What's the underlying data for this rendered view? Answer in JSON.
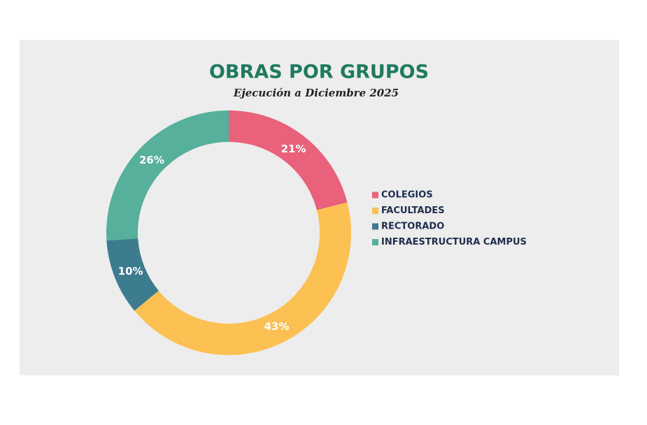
{
  "chart_data": {
    "type": "donut",
    "title": "OBRAS POR GRUPOS",
    "subtitle": "Ejecución a Diciembre 2025",
    "categories": [
      "COLEGIOS",
      "FACULTADES",
      "RECTORADO",
      "INFRAESTRUCTURA CAMPUS"
    ],
    "values": [
      21,
      43,
      10,
      26
    ],
    "value_labels": [
      "21%",
      "43%",
      "10%",
      "26%"
    ],
    "colors": [
      "#e9617a",
      "#fdc153",
      "#3d7b8f",
      "#56b09b"
    ],
    "legend": "right"
  }
}
